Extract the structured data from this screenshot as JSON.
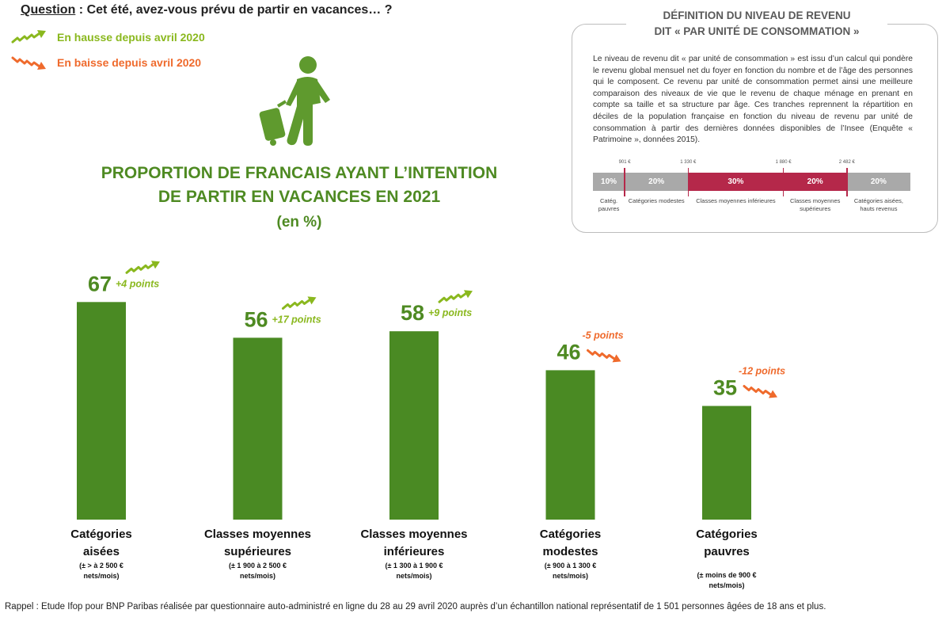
{
  "question": {
    "label": "Question",
    "text": " : Cet été, avez-vous prévu de partir en vacances… ?"
  },
  "legend": {
    "up": {
      "label": "En hausse depuis avril 2020",
      "icon": "trend-up-arrow-icon",
      "color": "#8ab81e"
    },
    "down": {
      "label": "En baisse depuis avril 2020",
      "icon": "trend-down-arrow-icon",
      "color": "#ef6a2c"
    }
  },
  "illustration": {
    "icon": "traveler-with-suitcase-icon",
    "color": "#5f9a2e"
  },
  "definition": {
    "title_line1": "DÉFINITION DU NIVEAU DE REVENU",
    "title_line2": "DIT « PAR UNITÉ DE CONSOMMATION »",
    "text": "Le niveau de revenu dit « par unité de consommation » est issu d’un calcul qui pondère le revenu global mensuel net du foyer en fonction du nombre et de l’âge des personnes qui le composent. Ce revenu par unité de consommation permet ainsi une meilleure comparaison des niveaux de vie que le revenu de chaque ménage en prenant en compte sa taille et sa structure par âge. Ces tranches reprennent la répartition en déciles de la population française en fonction du niveau de revenu par unité de consommation à partir des dernières données disponibles de l’Insee (Enquête « Patrimoine », données 2015).",
    "thresholds": [
      "901 €",
      "1 330 €",
      "1 880 €",
      "2 482 €"
    ],
    "segments": [
      {
        "percent": "10%",
        "share": 10,
        "label_line1": "Catég.",
        "label_line2": "pauvres",
        "color": "#a9a9a9"
      },
      {
        "percent": "20%",
        "share": 20,
        "label_line1": "Catégories modestes",
        "label_line2": "",
        "color": "#a9a9a9"
      },
      {
        "percent": "30%",
        "share": 30,
        "label_line1": "Classes moyennes inférieures",
        "label_line2": "",
        "color": "#b5284a"
      },
      {
        "percent": "20%",
        "share": 20,
        "label_line1": "Classes moyennes",
        "label_line2": "supérieures",
        "color": "#b5284a"
      },
      {
        "percent": "20%",
        "share": 20,
        "label_line1": "Catégories aisées,",
        "label_line2": "hauts revenus",
        "color": "#a9a9a9"
      }
    ]
  },
  "chart_data": {
    "type": "bar",
    "title_line1": "PROPORTION DE FRANCAIS AYANT L’INTENTION",
    "title_line2": "DE PARTIR EN VACANCES EN 2021",
    "subtitle": "(en %)",
    "categories": [
      {
        "line1": "Catégories",
        "line2": "aisées",
        "sub1": "(± > à 2 500 €",
        "sub2": "nets/mois)"
      },
      {
        "line1": "Classes moyennes",
        "line2": "supérieures",
        "sub1": "(± 1 900 à 2 500 €",
        "sub2": "nets/mois)"
      },
      {
        "line1": "Classes moyennes",
        "line2": "inférieures",
        "sub1": "(± 1 300 à 1 900 €",
        "sub2": "nets/mois)"
      },
      {
        "line1": "Catégories",
        "line2": "modestes",
        "sub1": "(± 900 à 1 300 €",
        "sub2": "nets/mois)"
      },
      {
        "line1": "Catégories",
        "line2": "pauvres",
        "sub1": "(± moins de 900 €",
        "sub2": "nets/mois)"
      }
    ],
    "values": [
      67,
      56,
      58,
      46,
      35
    ],
    "changes": [
      "+4 points",
      "+17 points",
      "+9 points",
      "-5 points",
      "-12 points"
    ],
    "trends": [
      "up",
      "up",
      "up",
      "down",
      "down"
    ],
    "ylim": [
      0,
      100
    ],
    "bar_color": "#4a8a23",
    "value_color": "#4e8a22",
    "up_color": "#8ab81e",
    "down_color": "#ef6a2c",
    "grid": false
  },
  "footer": "Rappel : Etude Ifop pour BNP Paribas réalisée par questionnaire auto-administré en ligne du 28 au 29 avril 2020 auprès d’un échantillon national représentatif de 1 501 personnes âgées de 18 ans et plus."
}
